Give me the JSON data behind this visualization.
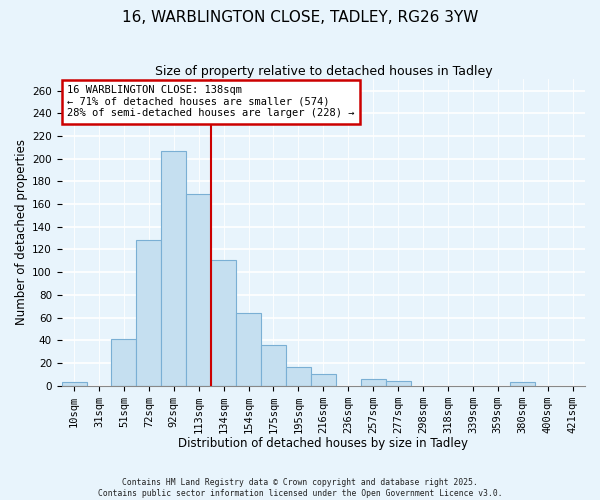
{
  "title": "16, WARBLINGTON CLOSE, TADLEY, RG26 3YW",
  "subtitle": "Size of property relative to detached houses in Tadley",
  "xlabel": "Distribution of detached houses by size in Tadley",
  "ylabel": "Number of detached properties",
  "bar_labels": [
    "10sqm",
    "31sqm",
    "51sqm",
    "72sqm",
    "92sqm",
    "113sqm",
    "134sqm",
    "154sqm",
    "175sqm",
    "195sqm",
    "216sqm",
    "236sqm",
    "257sqm",
    "277sqm",
    "298sqm",
    "318sqm",
    "339sqm",
    "359sqm",
    "380sqm",
    "400sqm",
    "421sqm"
  ],
  "bar_values": [
    3,
    0,
    41,
    128,
    207,
    169,
    111,
    64,
    36,
    16,
    10,
    0,
    6,
    4,
    0,
    0,
    0,
    0,
    3,
    0,
    0
  ],
  "bar_color": "#c5dff0",
  "bar_edge_color": "#7aafd4",
  "vline_color": "#cc0000",
  "annotation_title": "16 WARBLINGTON CLOSE: 138sqm",
  "annotation_line1": "← 71% of detached houses are smaller (574)",
  "annotation_line2": "28% of semi-detached houses are larger (228) →",
  "annotation_box_color": "white",
  "annotation_box_edge": "#cc0000",
  "ylim": [
    0,
    270
  ],
  "yticks": [
    0,
    20,
    40,
    60,
    80,
    100,
    120,
    140,
    160,
    180,
    200,
    220,
    240,
    260
  ],
  "footer_line1": "Contains HM Land Registry data © Crown copyright and database right 2025.",
  "footer_line2": "Contains public sector information licensed under the Open Government Licence v3.0.",
  "bg_color": "#e8f4fc",
  "title_fontsize": 11,
  "subtitle_fontsize": 9,
  "tick_fontsize": 7.5,
  "ylabel_fontsize": 8.5,
  "xlabel_fontsize": 8.5
}
